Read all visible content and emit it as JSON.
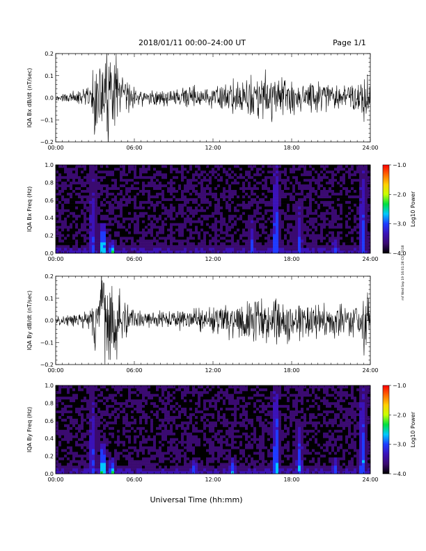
{
  "header": {
    "title": "2018/01/11  00:00–24:00 UT",
    "page": "Page 1/1"
  },
  "footer": {
    "xlabel": "Universal Time (hh:mm)",
    "side_stamp": "rnf Wed Sep 19 16:01:28 CST 2018"
  },
  "colors": {
    "trace": "#000000",
    "spectrogram_background": "#2a0a4a",
    "colormap": [
      "#000000",
      "#3a0a70",
      "#3b12b8",
      "#1f3bff",
      "#00c8ff",
      "#00e040",
      "#c8ff00",
      "#ffd000",
      "#ff6a00",
      "#ff0000"
    ]
  },
  "chart_data": [
    {
      "type": "line",
      "id": "bx-dbdt",
      "title": "",
      "ylabel": "IQA Bx dB/dt (nT/sec)",
      "xlabel": "",
      "xlim": [
        0,
        24
      ],
      "ylim": [
        -0.2,
        0.2
      ],
      "x_ticks": [
        "00:00",
        "06:00",
        "12:00",
        "18:00",
        "24:00"
      ],
      "y_ticks": [
        "−0.2",
        "−0.1",
        "0.0",
        "0.1",
        "0.2"
      ],
      "grid": false,
      "envelope": {
        "x_hours": [
          0,
          1,
          2,
          2.7,
          3,
          3.3,
          3.5,
          4,
          4.5,
          5,
          5.5,
          6,
          7,
          8,
          9,
          10,
          10.5,
          11,
          11.5,
          12,
          12.5,
          13,
          13.5,
          14,
          14.5,
          15,
          15.5,
          16,
          16.5,
          17,
          17.5,
          18,
          18.5,
          19,
          19.5,
          20,
          20.5,
          21,
          21.5,
          22,
          22.5,
          23,
          23.5,
          24
        ],
        "amplitude": [
          0.02,
          0.03,
          0.04,
          0.08,
          0.22,
          0.1,
          0.25,
          0.25,
          0.25,
          0.15,
          0.08,
          0.06,
          0.04,
          0.04,
          0.05,
          0.06,
          0.07,
          0.06,
          0.06,
          0.06,
          0.07,
          0.08,
          0.09,
          0.1,
          0.1,
          0.11,
          0.12,
          0.13,
          0.12,
          0.12,
          0.12,
          0.1,
          0.1,
          0.09,
          0.09,
          0.1,
          0.09,
          0.08,
          0.08,
          0.08,
          0.09,
          0.08,
          0.2,
          0.08
        ]
      }
    },
    {
      "type": "heatmap",
      "id": "bx-freq",
      "title": "",
      "ylabel": "IQA Bx Freq (Hz)",
      "xlabel": "",
      "xlim": [
        0,
        24
      ],
      "ylim": [
        0,
        1.0
      ],
      "x_ticks": [
        "00:00",
        "06:00",
        "12:00",
        "18:00",
        "24:00"
      ],
      "y_ticks": [
        "0.0",
        "0.2",
        "0.4",
        "0.6",
        "0.8",
        "1.0"
      ],
      "colorbar": {
        "label": "Log10 Power",
        "range": [
          -4.0,
          -1.0
        ],
        "ticks": [
          "−1.0",
          "−2.0",
          "−3.0",
          "−4.0"
        ]
      },
      "bursts": [
        {
          "hour": 2.8,
          "freq_extent": 1.0,
          "power": -3.0
        },
        {
          "hour": 3.6,
          "freq_extent": 0.35,
          "power": -2.0
        },
        {
          "hour": 4.3,
          "freq_extent": 0.15,
          "power": -2.2
        },
        {
          "hour": 10.8,
          "freq_extent": 0.1,
          "power": -3.0
        },
        {
          "hour": 15.0,
          "freq_extent": 0.4,
          "power": -3.0
        },
        {
          "hour": 16.8,
          "freq_extent": 1.0,
          "power": -2.6
        },
        {
          "hour": 18.6,
          "freq_extent": 0.6,
          "power": -3.0
        },
        {
          "hour": 21.3,
          "freq_extent": 0.2,
          "power": -3.0
        },
        {
          "hour": 23.4,
          "freq_extent": 1.0,
          "power": -2.8
        }
      ]
    },
    {
      "type": "line",
      "id": "by-dbdt",
      "title": "",
      "ylabel": "IQA By dB/dt (nT/sec)",
      "xlabel": "",
      "xlim": [
        0,
        24
      ],
      "ylim": [
        -0.2,
        0.2
      ],
      "x_ticks": [
        "00:00",
        "06:00",
        "12:00",
        "18:00",
        "24:00"
      ],
      "y_ticks": [
        "−0.2",
        "−0.1",
        "0.0",
        "0.1",
        "0.2"
      ],
      "grid": false,
      "envelope": {
        "x_hours": [
          0,
          1,
          2,
          2.7,
          3,
          3.3,
          3.5,
          4,
          4.5,
          5,
          5.5,
          6,
          7,
          8,
          9,
          10,
          10.5,
          11,
          11.5,
          12,
          12.5,
          13,
          13.5,
          14,
          14.5,
          15,
          15.5,
          16,
          16.5,
          17,
          17.5,
          18,
          18.5,
          19,
          19.5,
          20,
          20.5,
          21,
          21.5,
          22,
          22.5,
          23,
          23.5,
          24
        ],
        "amplitude": [
          0.02,
          0.03,
          0.04,
          0.08,
          0.22,
          0.12,
          0.25,
          0.25,
          0.25,
          0.15,
          0.08,
          0.06,
          0.05,
          0.05,
          0.05,
          0.06,
          0.07,
          0.07,
          0.07,
          0.07,
          0.08,
          0.09,
          0.1,
          0.1,
          0.11,
          0.12,
          0.12,
          0.13,
          0.12,
          0.12,
          0.12,
          0.11,
          0.1,
          0.1,
          0.1,
          0.1,
          0.09,
          0.09,
          0.09,
          0.09,
          0.09,
          0.09,
          0.2,
          0.09
        ]
      }
    },
    {
      "type": "heatmap",
      "id": "by-freq",
      "title": "",
      "ylabel": "IQA By Freq (Hz)",
      "xlabel": "Universal Time (hh:mm)",
      "xlim": [
        0,
        24
      ],
      "ylim": [
        0,
        1.0
      ],
      "x_ticks": [
        "00:00",
        "06:00",
        "12:00",
        "18:00",
        "24:00"
      ],
      "y_ticks": [
        "0.0",
        "0.2",
        "0.4",
        "0.6",
        "0.8",
        "1.0"
      ],
      "colorbar": {
        "label": "Log10 Power",
        "range": [
          -4.0,
          -1.0
        ],
        "ticks": [
          "−1.0",
          "−2.0",
          "−3.0",
          "−4.0"
        ]
      },
      "bursts": [
        {
          "hour": 2.8,
          "freq_extent": 1.0,
          "power": -3.0
        },
        {
          "hour": 3.6,
          "freq_extent": 0.35,
          "power": -2.0
        },
        {
          "hour": 4.3,
          "freq_extent": 0.2,
          "power": -2.2
        },
        {
          "hour": 10.6,
          "freq_extent": 0.2,
          "power": -2.8
        },
        {
          "hour": 13.5,
          "freq_extent": 0.2,
          "power": -2.8
        },
        {
          "hour": 16.8,
          "freq_extent": 1.0,
          "power": -2.4
        },
        {
          "hour": 18.6,
          "freq_extent": 0.6,
          "power": -2.8
        },
        {
          "hour": 21.3,
          "freq_extent": 0.2,
          "power": -2.8
        },
        {
          "hour": 23.4,
          "freq_extent": 1.0,
          "power": -2.6
        }
      ]
    }
  ]
}
